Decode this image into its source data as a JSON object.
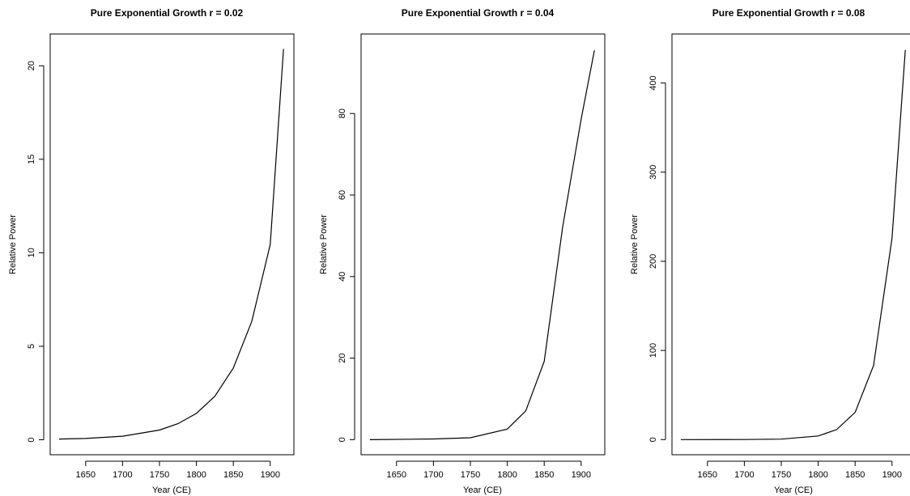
{
  "chart_data": [
    {
      "type": "line",
      "title": "Pure Exponential Growth r = 0.02",
      "xlabel": "Year (CE)",
      "ylabel": "Relative Power",
      "rate": 0.02,
      "xlim": [
        1602,
        1932
      ],
      "ylim": [
        -0.8,
        21.7
      ],
      "xticks": [
        1650,
        1700,
        1750,
        1800,
        1850,
        1900
      ],
      "yticks": [
        0,
        5,
        10,
        15,
        20
      ],
      "grid": false,
      "legend": "none",
      "series": [
        {
          "x": [
            1614,
            1650,
            1700,
            1750,
            1775,
            1800,
            1825,
            1850,
            1875,
            1900,
            1918
          ],
          "y": [
            0.04,
            0.07,
            0.19,
            0.52,
            0.86,
            1.41,
            2.33,
            3.84,
            6.33,
            10.45,
            20.9
          ]
        }
      ]
    },
    {
      "type": "line",
      "title": "Pure Exponential Growth r = 0.04",
      "xlabel": "Year (CE)",
      "ylabel": "Relative Power",
      "rate": 0.04,
      "xlim": [
        1602,
        1932
      ],
      "ylim": [
        -3.7,
        99.5
      ],
      "xticks": [
        1650,
        1700,
        1750,
        1800,
        1850,
        1900
      ],
      "yticks": [
        0,
        20,
        40,
        60,
        80
      ],
      "grid": false,
      "legend": "none",
      "series": [
        {
          "x": [
            1614,
            1700,
            1750,
            1800,
            1825,
            1850,
            1875,
            1900,
            1918
          ],
          "y": [
            0.0,
            0.17,
            0.47,
            2.59,
            7.05,
            19.2,
            52.2,
            78.6,
            95.5
          ]
        }
      ]
    },
    {
      "type": "line",
      "title": "Pure Exponential Growth r = 0.08",
      "xlabel": "Year (CE)",
      "ylabel": "Relative Power",
      "rate": 0.08,
      "xlim": [
        1602,
        1932
      ],
      "ylim": [
        -17,
        455
      ],
      "xticks": [
        1650,
        1700,
        1750,
        1800,
        1850,
        1900
      ],
      "yticks": [
        0,
        100,
        200,
        300,
        400
      ],
      "grid": false,
      "legend": "none",
      "series": [
        {
          "x": [
            1614,
            1700,
            1750,
            1800,
            1825,
            1850,
            1875,
            1900,
            1918
          ],
          "y": [
            0.0,
            0.1,
            0.5,
            4.1,
            11.2,
            30.5,
            83.1,
            226,
            437
          ]
        }
      ]
    }
  ]
}
